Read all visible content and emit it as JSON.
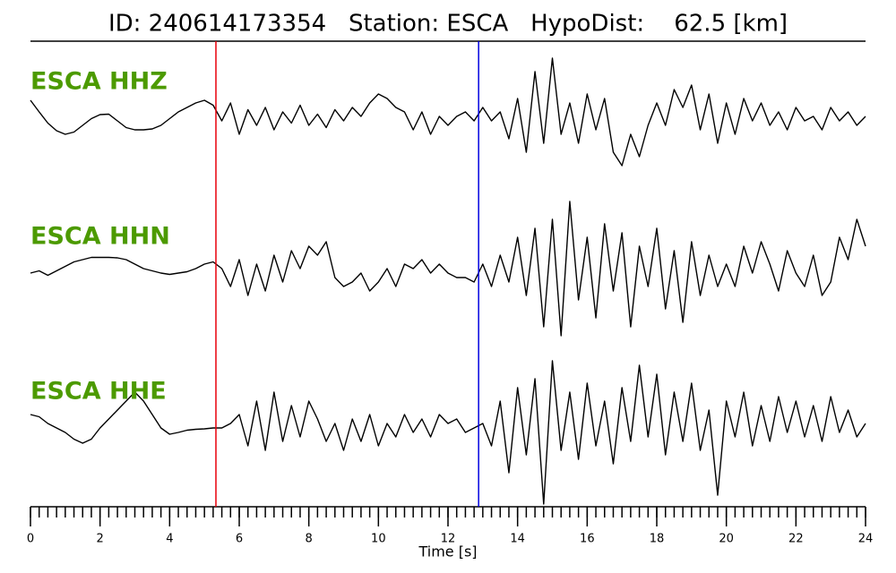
{
  "chart_data": {
    "type": "line",
    "title": "ID: 240614173354   Station: ESCA   HypoDist:    62.5 [km]",
    "xlabel": "Time [s]",
    "xlim": [
      0,
      24
    ],
    "xticks": [
      0,
      2,
      4,
      6,
      8,
      10,
      12,
      14,
      16,
      18,
      20,
      22,
      24
    ],
    "x": [
      0,
      0.25,
      0.5,
      0.75,
      1,
      1.25,
      1.5,
      1.75,
      2,
      2.25,
      2.5,
      2.75,
      3,
      3.25,
      3.5,
      3.75,
      4,
      4.25,
      4.5,
      4.75,
      5,
      5.25,
      5.5,
      5.75,
      6,
      6.25,
      6.5,
      6.75,
      7,
      7.25,
      7.5,
      7.75,
      8,
      8.25,
      8.5,
      8.75,
      9,
      9.25,
      9.5,
      9.75,
      10,
      10.25,
      10.5,
      10.75,
      11,
      11.25,
      11.5,
      11.75,
      12,
      12.25,
      12.5,
      12.75,
      13,
      13.25,
      13.5,
      13.75,
      14,
      14.25,
      14.5,
      14.75,
      15,
      15.25,
      15.5,
      15.75,
      16,
      16.25,
      16.5,
      16.75,
      17,
      17.25,
      17.5,
      17.75,
      18,
      18.25,
      18.5,
      18.75,
      19,
      19.25,
      19.5,
      19.75,
      20,
      20.25,
      20.5,
      20.75,
      21,
      21.25,
      21.5,
      21.75,
      22,
      22.25,
      22.5,
      22.75,
      23,
      23.25,
      23.5,
      23.75,
      24
    ],
    "label_color": "#4c9a00",
    "series": [
      {
        "name": "ESCA HHZ",
        "color": "#000000",
        "values": [
          3.6,
          1,
          -1.5,
          -3.2,
          -4,
          -3.5,
          -2,
          -0.5,
          0.4,
          0.5,
          -1,
          -2.5,
          -3,
          -3,
          -2.8,
          -2,
          -0.5,
          1,
          2,
          3,
          3.6,
          2.5,
          -1,
          3,
          -4,
          1.5,
          -2,
          2,
          -3,
          1,
          -1.5,
          2.5,
          -2,
          0.5,
          -2.5,
          1.5,
          -1,
          2,
          0,
          3,
          5,
          4,
          2,
          1,
          -3,
          1,
          -4,
          0,
          -2,
          0,
          1,
          -1,
          2,
          -1,
          1,
          -5,
          4,
          -8,
          10,
          -6,
          13,
          -4,
          3,
          -6,
          5,
          -3,
          4,
          -8,
          -11,
          -4,
          -9,
          -2,
          3,
          -2,
          6,
          2,
          7,
          -3,
          5,
          -6,
          3,
          -4,
          4,
          -1,
          3,
          -2,
          1,
          -3,
          2,
          -1,
          0,
          -3,
          2,
          -1,
          1,
          -2,
          0
        ]
      },
      {
        "name": "ESCA HHN",
        "color": "#000000",
        "values": [
          0,
          0.5,
          -0.5,
          0.5,
          1.5,
          2.5,
          3,
          3.5,
          3.5,
          3.5,
          3.4,
          3,
          2,
          1,
          0.5,
          0,
          -0.3,
          0,
          0.3,
          1,
          2,
          2.5,
          1,
          -3,
          3,
          -5,
          2,
          -4,
          4,
          -2,
          5,
          1,
          6,
          4,
          7,
          -1,
          -3,
          -2,
          0,
          -4,
          -2,
          1,
          -3,
          2,
          1,
          3,
          0,
          2,
          0,
          -1,
          -1,
          -2,
          2,
          -3,
          4,
          -2,
          8,
          -5,
          10,
          -12,
          12,
          -14,
          16,
          -6,
          8,
          -10,
          11,
          -4,
          9,
          -12,
          6,
          -3,
          10,
          -8,
          5,
          -11,
          7,
          -5,
          4,
          -3,
          2,
          -3,
          6,
          0,
          7,
          2,
          -4,
          5,
          0,
          -3,
          4,
          -5,
          -2,
          8,
          3,
          12,
          6
        ]
      },
      {
        "name": "ESCA HHE",
        "color": "#000000",
        "values": [
          3,
          2.5,
          1,
          0,
          -1,
          -2.5,
          -3.4,
          -2.5,
          0,
          2,
          4,
          6,
          8,
          6,
          3,
          0,
          -1.4,
          -1,
          -0.5,
          -0.3,
          -0.2,
          0,
          0,
          1,
          3,
          -4,
          6,
          -5,
          8,
          -3,
          5,
          -2,
          6,
          2,
          -3,
          1,
          -5,
          2,
          -3,
          3,
          -4,
          1,
          -2,
          3,
          -1,
          2,
          -2,
          3,
          1,
          2,
          -1,
          0,
          1,
          -4,
          6,
          -10,
          9,
          -6,
          11,
          -17,
          15,
          -5,
          8,
          -7,
          10,
          -4,
          6,
          -8,
          9,
          -3,
          14,
          -2,
          12,
          -6,
          8,
          -3,
          10,
          -5,
          4,
          -15,
          6,
          -2,
          8,
          -4,
          5,
          -3,
          7,
          -1,
          6,
          -2,
          5,
          -3,
          7,
          -1,
          4,
          -2,
          1
        ]
      }
    ],
    "vlines": [
      {
        "x": 5.33,
        "color": "#e8000b"
      },
      {
        "x": 12.88,
        "color": "#0000e0"
      }
    ]
  }
}
